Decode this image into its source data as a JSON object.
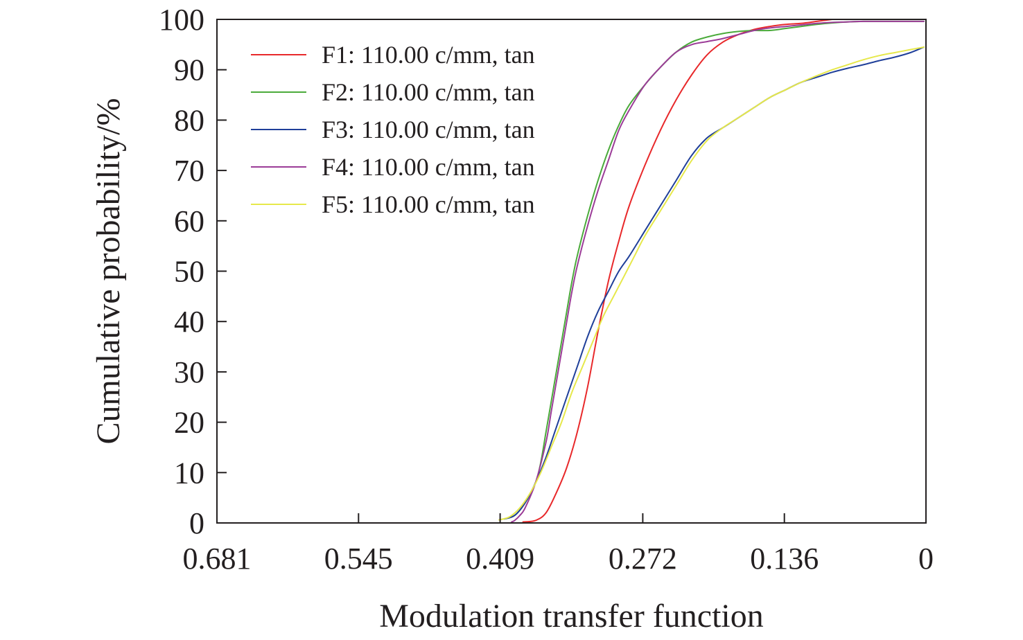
{
  "chart_data": {
    "type": "line",
    "xlabel": "Modulation transfer function",
    "ylabel": "Cumulative probability/%",
    "x_reversed": true,
    "xlim": [
      0.681,
      0
    ],
    "ylim": [
      0,
      100
    ],
    "x_ticks": [
      0.681,
      0.545,
      0.409,
      0.272,
      0.136,
      0
    ],
    "x_tick_labels": [
      "0.681",
      "0.545",
      "0.409",
      "0.272",
      "0.136",
      "0"
    ],
    "y_ticks": [
      0,
      10,
      20,
      30,
      40,
      50,
      60,
      70,
      80,
      90,
      100
    ],
    "y_tick_labels": [
      "0",
      "10",
      "20",
      "30",
      "40",
      "50",
      "60",
      "70",
      "80",
      "90",
      "100"
    ],
    "grid": false,
    "legend_position": "top-left",
    "series": [
      {
        "name": "F1: 110.00 c/mm, tan",
        "color": "#e8282a",
        "x": [
          0.387,
          0.375,
          0.365,
          0.355,
          0.345,
          0.335,
          0.325,
          0.315,
          0.305,
          0.295,
          0.285,
          0.27,
          0.255,
          0.24,
          0.225,
          0.21,
          0.195,
          0.18,
          0.165,
          0.15,
          0.135,
          0.12,
          0.105,
          0.09
        ],
        "y": [
          0.2,
          0.5,
          2,
          6,
          11,
          18,
          27,
          38,
          48,
          56,
          63,
          71,
          78,
          84,
          89,
          93,
          95.5,
          97,
          98,
          98.6,
          99,
          99.2,
          99.6,
          100
        ]
      },
      {
        "name": "F2: 110.00 c/mm, tan",
        "color": "#4aaa3a",
        "x": [
          0.405,
          0.395,
          0.385,
          0.375,
          0.37,
          0.365,
          0.36,
          0.355,
          0.35,
          0.345,
          0.34,
          0.335,
          0.325,
          0.315,
          0.305,
          0.295,
          0.285,
          0.27,
          0.255,
          0.24,
          0.225,
          0.21,
          0.195,
          0.18,
          0.165,
          0.15,
          0.135,
          0.12,
          0.105,
          0.09,
          0.075,
          0.06,
          0.04,
          0.02,
          0.002
        ],
        "y": [
          0.8,
          1.5,
          4,
          8,
          12,
          18,
          24,
          30,
          36,
          42,
          48,
          53,
          61,
          68,
          74,
          79,
          83,
          87,
          90.5,
          93.5,
          95.5,
          96.5,
          97.2,
          97.6,
          97.8,
          97.8,
          98.2,
          98.6,
          99,
          99.3,
          99.5,
          99.6,
          99.6,
          99.6,
          99.6
        ]
      },
      {
        "name": "F3: 110.00 c/mm, tan",
        "color": "#1f3f99",
        "x": [
          0.405,
          0.395,
          0.385,
          0.375,
          0.365,
          0.355,
          0.345,
          0.335,
          0.325,
          0.315,
          0.305,
          0.295,
          0.285,
          0.27,
          0.255,
          0.24,
          0.225,
          0.21,
          0.195,
          0.18,
          0.165,
          0.15,
          0.135,
          0.12,
          0.105,
          0.09,
          0.075,
          0.06,
          0.045,
          0.03,
          0.015,
          0.002
        ],
        "y": [
          0.8,
          1.5,
          4,
          8,
          13,
          19,
          25,
          31,
          37,
          42,
          46,
          50,
          53,
          58,
          63,
          68,
          73,
          76.5,
          78.5,
          80.5,
          82.5,
          84.5,
          86,
          87.5,
          88.5,
          89.5,
          90.3,
          91,
          91.8,
          92.5,
          93.4,
          94.5
        ]
      },
      {
        "name": "F4: 110.00 c/mm, tan",
        "color": "#9b3b97",
        "x": [
          0.398,
          0.395,
          0.39,
          0.385,
          0.375,
          0.365,
          0.36,
          0.355,
          0.35,
          0.345,
          0.34,
          0.335,
          0.325,
          0.315,
          0.305,
          0.295,
          0.285,
          0.27,
          0.255,
          0.24,
          0.225,
          0.21,
          0.195,
          0.18,
          0.165,
          0.15,
          0.135,
          0.12,
          0.105,
          0.09,
          0.075,
          0.06,
          0.04,
          0.02,
          0.002
        ],
        "y": [
          0.2,
          0.5,
          1.5,
          3,
          8,
          16,
          22,
          28,
          34,
          40,
          46,
          51,
          59,
          66,
          72,
          78,
          82,
          87,
          90.5,
          93.5,
          95,
          95.6,
          96.2,
          97,
          97.8,
          98.3,
          98.6,
          98.9,
          99.2,
          99.4,
          99.5,
          99.6,
          99.6,
          99.6,
          99.6
        ]
      },
      {
        "name": "F5: 110.00 c/mm, tan",
        "color": "#e6e84a",
        "x": [
          0.41,
          0.4,
          0.39,
          0.38,
          0.37,
          0.36,
          0.35,
          0.34,
          0.33,
          0.32,
          0.31,
          0.3,
          0.29,
          0.28,
          0.27,
          0.255,
          0.24,
          0.225,
          0.21,
          0.195,
          0.18,
          0.165,
          0.15,
          0.135,
          0.12,
          0.105,
          0.09,
          0.075,
          0.06,
          0.045,
          0.03,
          0.015,
          0.002
        ],
        "y": [
          0.6,
          1.2,
          3,
          6,
          10,
          15,
          20,
          26,
          31,
          36,
          41,
          45,
          49,
          53,
          57,
          62,
          67,
          72,
          76,
          78.5,
          80.5,
          82.5,
          84.5,
          86,
          87.5,
          88.8,
          90,
          91,
          92,
          92.8,
          93.4,
          94,
          94.5
        ]
      }
    ]
  }
}
